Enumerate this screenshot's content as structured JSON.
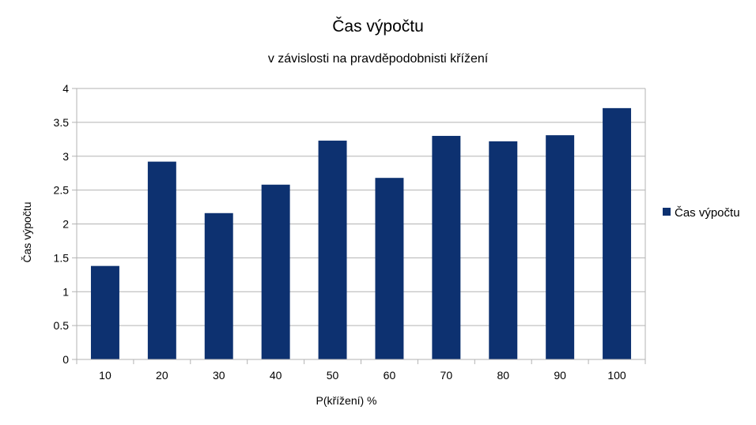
{
  "chart_data": {
    "type": "bar",
    "title": "Čas výpočtu",
    "subtitle": "v závislosti na pravděpodobnisti křížení",
    "xlabel": "P(křížení) %",
    "ylabel": "Čas výpočtu",
    "categories": [
      "10",
      "20",
      "30",
      "40",
      "50",
      "60",
      "70",
      "80",
      "90",
      "100"
    ],
    "series": [
      {
        "name": "Čas výpočtu",
        "color": "#0d3170",
        "values": [
          1.38,
          2.92,
          2.16,
          2.58,
          3.23,
          2.68,
          3.3,
          3.22,
          3.31,
          3.71
        ]
      }
    ],
    "ylim": [
      0,
      4
    ],
    "yticks": [
      0,
      0.5,
      1,
      1.5,
      2,
      2.5,
      3,
      3.5,
      4
    ],
    "grid": true,
    "legend_position": "right",
    "colors": {
      "bar": "#0d3170",
      "grid": "#b3b3b3",
      "axis": "#b3b3b3"
    }
  }
}
